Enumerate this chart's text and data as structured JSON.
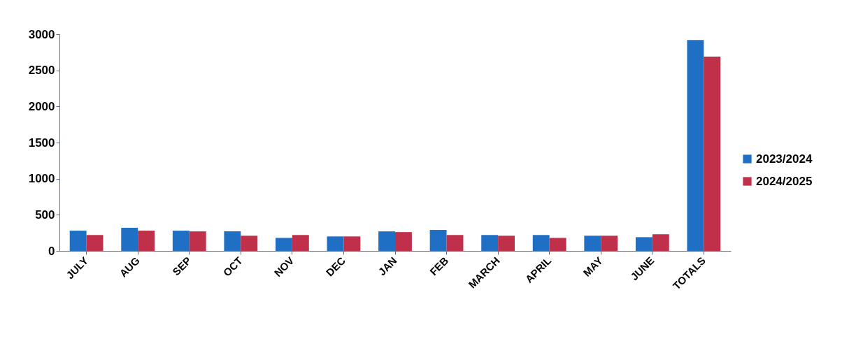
{
  "chart_data": {
    "type": "bar",
    "categories": [
      "JULY",
      "AUG",
      "SEP",
      "OCT",
      "NOV",
      "DEC",
      "JAN",
      "FEB",
      "MARCH",
      "APRIL",
      "MAY",
      "JUNE",
      "TOTALS"
    ],
    "series": [
      {
        "name": "2023/2024",
        "color": "#1f6fc5",
        "values": [
          280,
          320,
          280,
          270,
          180,
          200,
          270,
          290,
          220,
          220,
          210,
          190,
          2920
        ]
      },
      {
        "name": "2024/2025",
        "color": "#c0304a",
        "values": [
          220,
          280,
          270,
          210,
          220,
          200,
          260,
          220,
          210,
          180,
          210,
          230,
          2690
        ]
      }
    ],
    "ylim": [
      0,
      3000
    ],
    "yticks": [
      0,
      500,
      1000,
      1500,
      2000,
      2500,
      3000
    ],
    "grid": false,
    "legend": "right"
  }
}
